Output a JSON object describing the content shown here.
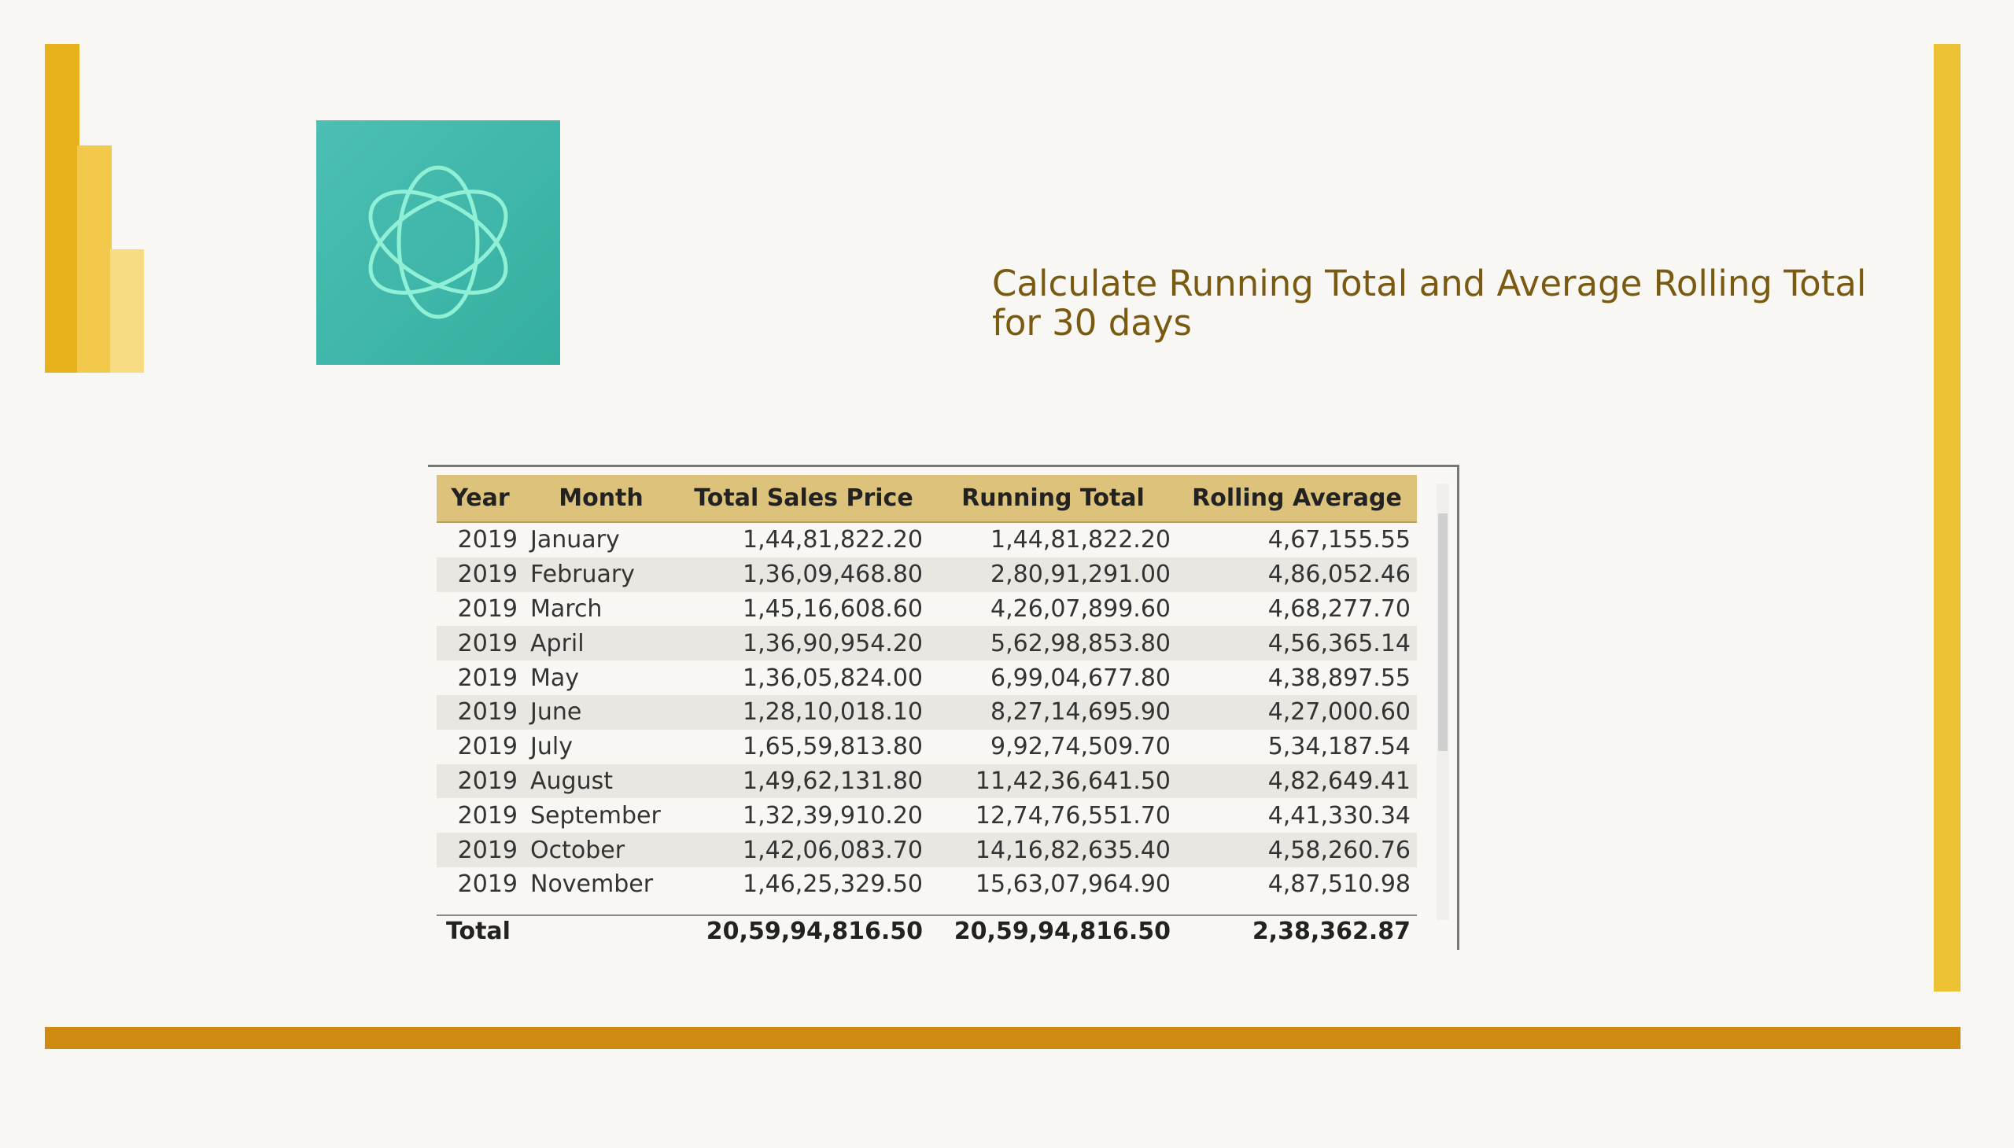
{
  "title": "Calculate Running Total and Average Rolling Total for 30 days",
  "table": {
    "columns": [
      "Year",
      "Month",
      "Total Sales Price",
      "Running Total",
      "Rolling Average"
    ],
    "rows": [
      [
        "2019",
        "January",
        "1,44,81,822.20",
        "1,44,81,822.20",
        "4,67,155.55"
      ],
      [
        "2019",
        "February",
        "1,36,09,468.80",
        "2,80,91,291.00",
        "4,86,052.46"
      ],
      [
        "2019",
        "March",
        "1,45,16,608.60",
        "4,26,07,899.60",
        "4,68,277.70"
      ],
      [
        "2019",
        "April",
        "1,36,90,954.20",
        "5,62,98,853.80",
        "4,56,365.14"
      ],
      [
        "2019",
        "May",
        "1,36,05,824.00",
        "6,99,04,677.80",
        "4,38,897.55"
      ],
      [
        "2019",
        "June",
        "1,28,10,018.10",
        "8,27,14,695.90",
        "4,27,000.60"
      ],
      [
        "2019",
        "July",
        "1,65,59,813.80",
        "9,92,74,509.70",
        "5,34,187.54"
      ],
      [
        "2019",
        "August",
        "1,49,62,131.80",
        "11,42,36,641.50",
        "4,82,649.41"
      ],
      [
        "2019",
        "September",
        "1,32,39,910.20",
        "12,74,76,551.70",
        "4,41,330.34"
      ],
      [
        "2019",
        "October",
        "1,42,06,083.70",
        "14,16,82,635.40",
        "4,58,260.76"
      ],
      [
        "2019",
        "November",
        "1,46,25,329.50",
        "15,63,07,964.90",
        "4,87,510.98"
      ]
    ],
    "total": {
      "label": "Total",
      "values": [
        "20,59,94,816.50",
        "20,59,94,816.50",
        "2,38,362.87"
      ]
    }
  }
}
